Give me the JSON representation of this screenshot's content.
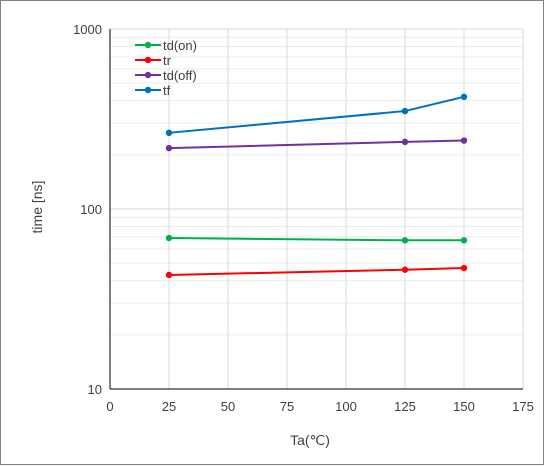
{
  "chart_data": {
    "type": "line",
    "xlabel": "Ta(℃)",
    "ylabel": "time [ns]",
    "xlim": [
      0,
      175
    ],
    "ylim": [
      10,
      1000
    ],
    "y_scale": "log",
    "x_ticks": [
      0,
      25,
      50,
      75,
      100,
      125,
      150,
      175
    ],
    "y_ticks": [
      10,
      100,
      1000
    ],
    "grid": true,
    "legend_position": "top-left",
    "series": [
      {
        "name": "td(on)",
        "color": "#00b050",
        "x": [
          25,
          125,
          150
        ],
        "y": [
          69,
          67,
          67
        ]
      },
      {
        "name": "tr",
        "color": "#ff0000",
        "x": [
          25,
          125,
          150
        ],
        "y": [
          43,
          46,
          47
        ]
      },
      {
        "name": "td(off)",
        "color": "#7030a0",
        "x": [
          25,
          125,
          150
        ],
        "y": [
          218,
          236,
          240
        ]
      },
      {
        "name": "tf",
        "color": "#0070c0",
        "x": [
          25,
          125,
          150
        ],
        "y": [
          265,
          350,
          420
        ]
      }
    ]
  }
}
